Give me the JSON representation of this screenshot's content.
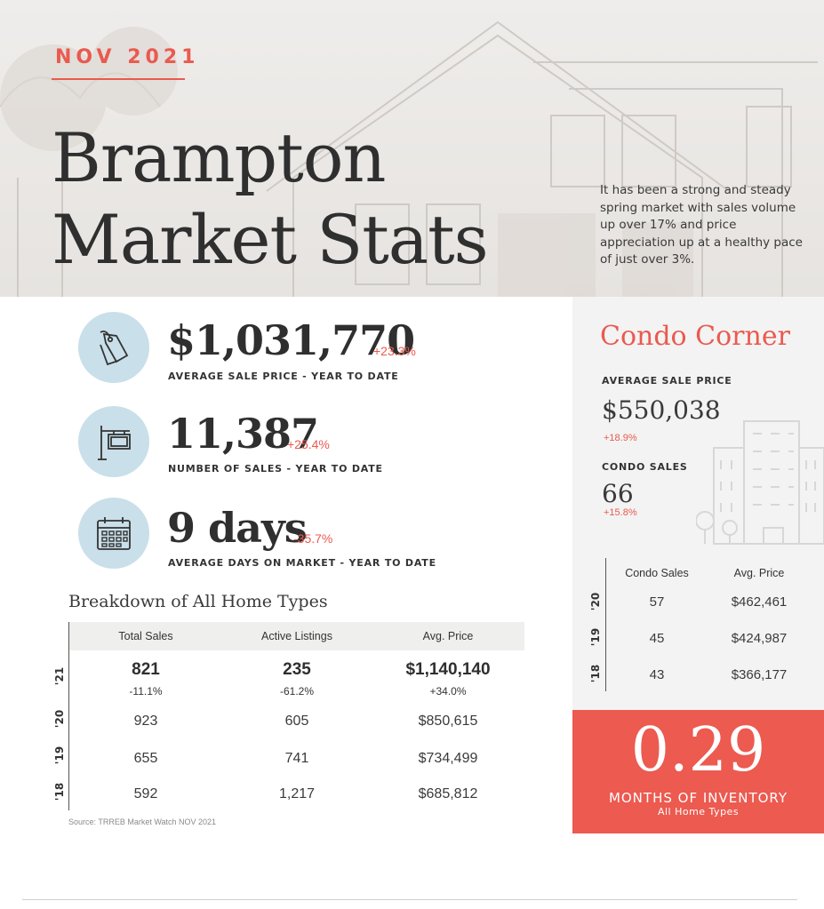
{
  "header": {
    "month": "NOV 2021",
    "title_line1": "Brampton",
    "title_line2": "Market Stats",
    "intro": "It has been a strong and steady spring market with sales volume up over 17% and price appreciation up at a healthy pace of just over 3%."
  },
  "stats": [
    {
      "icon": "price-tag-icon",
      "value": "$1,031,770",
      "change": "+23.3%",
      "label": "AVERAGE SALE PRICE - YEAR TO DATE"
    },
    {
      "icon": "for-sale-sign-icon",
      "value": "11,387",
      "change": "+25.4%",
      "label": "NUMBER OF SALES - YEAR TO DATE"
    },
    {
      "icon": "calendar-icon",
      "value": "9 days",
      "change": "-35.7%",
      "label": "AVERAGE DAYS ON MARKET - YEAR TO DATE"
    }
  ],
  "breakdown": {
    "title": "Breakdown of All Home Types",
    "headers": [
      "Total Sales",
      "Active Listings",
      "Avg. Price"
    ],
    "rows": [
      {
        "year": "'21",
        "cells": [
          "821",
          "235",
          "$1,140,140"
        ],
        "changes": [
          "-11.1%",
          "-61.2%",
          "+34.0%"
        ]
      },
      {
        "year": "'20",
        "cells": [
          "923",
          "605",
          "$850,615"
        ]
      },
      {
        "year": "'19",
        "cells": [
          "655",
          "741",
          "$734,499"
        ]
      },
      {
        "year": "'18",
        "cells": [
          "592",
          "1,217",
          "$685,812"
        ]
      }
    ],
    "source": "Source: TRREB Market Watch NOV 2021"
  },
  "condo": {
    "title": "Condo Corner",
    "avg_price_label": "AVERAGE SALE PRICE",
    "avg_price": "$550,038",
    "avg_price_change": "+18.9%",
    "sales_label": "CONDO SALES",
    "sales": "66",
    "sales_change": "+15.8%",
    "table_headers": [
      "Condo Sales",
      "Avg. Price"
    ],
    "rows": [
      {
        "year": "'20",
        "cells": [
          "57",
          "$462,461"
        ]
      },
      {
        "year": "'19",
        "cells": [
          "45",
          "$424,987"
        ]
      },
      {
        "year": "'18",
        "cells": [
          "43",
          "$366,177"
        ]
      }
    ]
  },
  "inventory": {
    "value": "0.29",
    "label": "MONTHS OF INVENTORY",
    "sub": "All Home Types"
  },
  "colors": {
    "accent": "#ea5a4f",
    "icon_circle": "#c9dfe9",
    "text": "#2f2f2f"
  }
}
